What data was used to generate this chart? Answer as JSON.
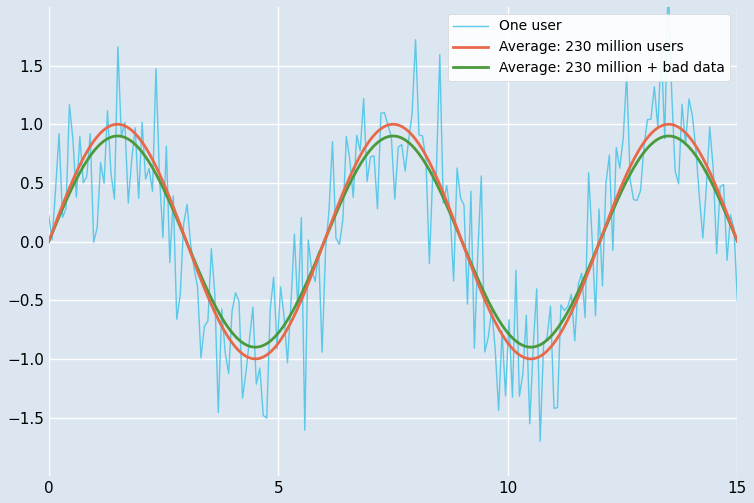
{
  "x_start": 0,
  "x_end": 15,
  "num_points_noisy": 200,
  "num_points_smooth": 1000,
  "noise_seed": 42,
  "noise_amplitude": 0.45,
  "sine_amplitude_clean": 1.0,
  "sine_amplitude_bad": 0.9,
  "sine_freq": 1.047,
  "bad_data_shift": 0.0,
  "color_noisy": "#5bc8e8",
  "color_smooth": "#e8694a",
  "color_bad": "#4a9a3c",
  "legend_labels": [
    "One user",
    "Average: 230 million users",
    "Average: 230 million + bad data"
  ],
  "ylim": [
    -2,
    2
  ],
  "yticks": [
    -1.5,
    -1.0,
    -0.5,
    0.0,
    0.5,
    1.0,
    1.5
  ],
  "xlim": [
    0,
    15
  ],
  "xticks": [
    0,
    5,
    10,
    15
  ],
  "bg_color": "#dce6f0",
  "lw_noisy": 1.0,
  "lw_smooth": 2.0,
  "lw_bad": 2.0
}
